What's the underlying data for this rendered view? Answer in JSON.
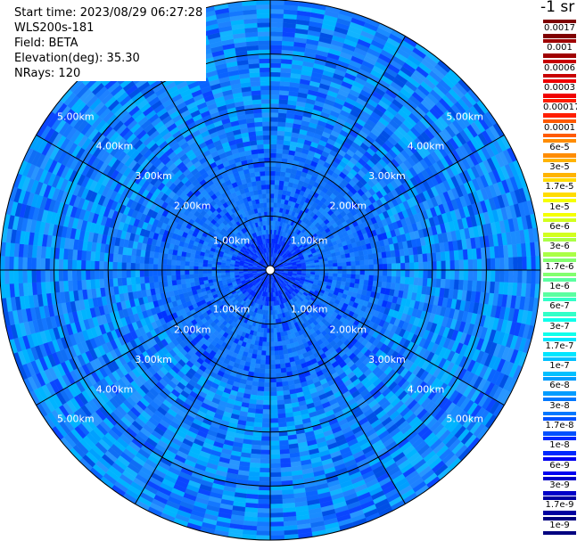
{
  "info": {
    "start_time": "Start time: 2023/08/29 06:27:28",
    "instrument": "WLS200s-181",
    "field": "Field: BETA",
    "elevation": "Elevation(deg): 35.30",
    "nrays": "NRays: 120"
  },
  "colorbar": {
    "unit": "-1 sr",
    "labels": [
      "0.0017",
      "0.001",
      "0.0006",
      "0.0003",
      "0.00017",
      "0.0001",
      "6e-5",
      "3e-5",
      "1.7e-5",
      "1e-5",
      "6e-6",
      "3e-6",
      "1.7e-6",
      "1e-6",
      "6e-7",
      "3e-7",
      "1.7e-7",
      "1e-7",
      "6e-8",
      "3e-8",
      "1.7e-8",
      "1e-8",
      "6e-9",
      "3e-9",
      "1.7e-9",
      "1e-9"
    ],
    "colors": [
      "#7f0000",
      "#a00000",
      "#c80000",
      "#f00000",
      "#ff1e00",
      "#ff5a00",
      "#ff8c00",
      "#ffb400",
      "#ffdc00",
      "#f5ff00",
      "#d2ff1e",
      "#aaff46",
      "#82ff6e",
      "#5affa0",
      "#32ffc8",
      "#0fffeb",
      "#00e6ff",
      "#00c0ff",
      "#009cff",
      "#0078ff",
      "#0050ff",
      "#0028ff",
      "#0000f0",
      "#0000c8",
      "#0000a0",
      "#000080"
    ]
  },
  "chart_data": {
    "type": "heatmap",
    "projection": "polar (PPI scan)",
    "field": "BETA",
    "elevation_deg": 35.3,
    "n_rays": 120,
    "range_rings_km": [
      1,
      2,
      3,
      4,
      5
    ],
    "ring_labels": [
      "1.00km",
      "2.00km",
      "3.00km",
      "4.00km",
      "5.00km"
    ],
    "max_range_km": 5.0,
    "azimuth_lines_deg": [
      0,
      30,
      60,
      90,
      120,
      150,
      180,
      210,
      240,
      270,
      300,
      330
    ],
    "dominant_value_range": [
      "1e-8",
      "3e-8"
    ],
    "near_center_value_range": [
      "1e-9",
      "3e-9"
    ],
    "colorbar_scale": "log"
  }
}
